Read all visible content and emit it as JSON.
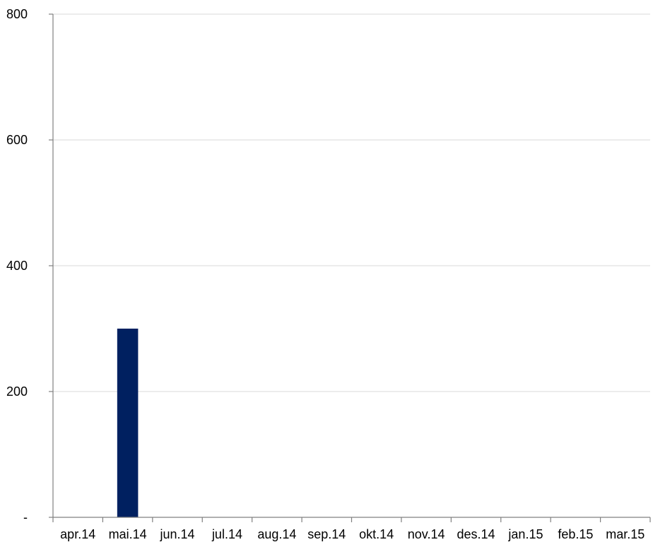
{
  "chart_data": {
    "type": "bar",
    "categories": [
      "apr.14",
      "mai.14",
      "jun.14",
      "jul.14",
      "aug.14",
      "sep.14",
      "okt.14",
      "nov.14",
      "des.14",
      "jan.15",
      "feb.15",
      "mar.15"
    ],
    "values": [
      0,
      300,
      0,
      0,
      0,
      0,
      0,
      0,
      0,
      0,
      0,
      0
    ],
    "title": "",
    "xlabel": "",
    "ylabel": "",
    "ylim": [
      0,
      800
    ],
    "yticks": [
      0,
      200,
      400,
      600,
      800
    ],
    "ytick_labels": [
      "-",
      "200",
      "400",
      "600",
      "800"
    ],
    "grid": true,
    "legend": "none",
    "bar_color": "#002060"
  }
}
